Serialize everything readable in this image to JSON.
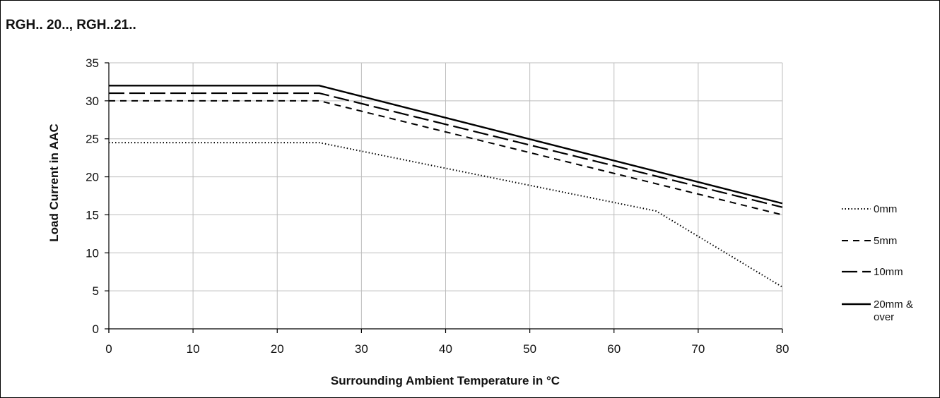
{
  "chart_data": {
    "type": "line",
    "title": "RGH.. 20.., RGH..21..",
    "xlabel": "Surrounding Ambient Temperature in °C",
    "ylabel": "Load Current in AAC",
    "xlim": [
      0,
      80
    ],
    "ylim": [
      0,
      35
    ],
    "xticks": [
      0,
      10,
      20,
      30,
      40,
      50,
      60,
      70,
      80
    ],
    "yticks": [
      0,
      5,
      10,
      15,
      20,
      25,
      30,
      35
    ],
    "grid": true,
    "legend_position": "right",
    "series": [
      {
        "name": "0mm",
        "style": "dotted",
        "x": [
          0,
          25,
          65,
          80
        ],
        "y": [
          24.5,
          24.5,
          15.5,
          5.5
        ]
      },
      {
        "name": "5mm",
        "style": "dashed",
        "x": [
          0,
          25,
          80
        ],
        "y": [
          30,
          30,
          15
        ]
      },
      {
        "name": "10mm",
        "style": "longdash",
        "x": [
          0,
          25,
          80
        ],
        "y": [
          31,
          31,
          16
        ]
      },
      {
        "name": "20mm & over",
        "style": "solid",
        "x": [
          0,
          25,
          80
        ],
        "y": [
          32,
          32,
          16.5
        ]
      }
    ]
  }
}
